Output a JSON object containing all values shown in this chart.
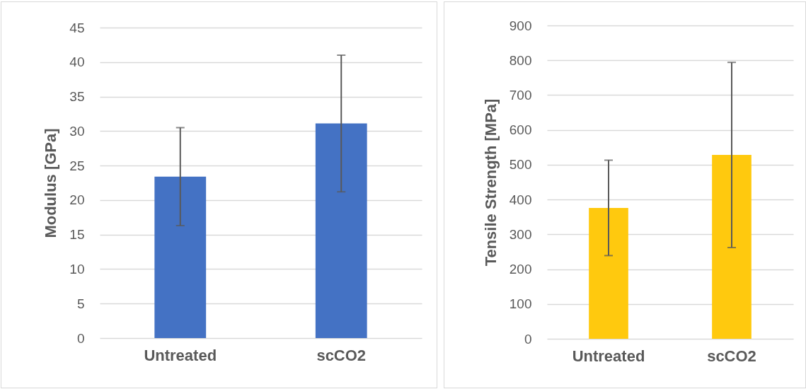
{
  "chart_data": [
    {
      "type": "bar",
      "ylabel": "Modulus [GPa]",
      "categories": [
        "Untreated",
        "scCO2"
      ],
      "values": [
        23.4,
        31.1
      ],
      "color": "#4472c4",
      "errors": [
        [
          16.3,
          30.5
        ],
        [
          21.2,
          41.0
        ]
      ],
      "ylim": [
        0,
        45
      ],
      "yticks": [
        0,
        5,
        10,
        15,
        20,
        25,
        30,
        35,
        40,
        45
      ],
      "grid": "y"
    },
    {
      "type": "bar",
      "ylabel": "Tensile Strength [MPa]",
      "categories": [
        "Untreated",
        "scCO2"
      ],
      "values": [
        376,
        528
      ],
      "color": "#ffc90e",
      "errors": [
        [
          239,
          513
        ],
        [
          262,
          794
        ]
      ],
      "ylim": [
        0,
        900
      ],
      "yticks": [
        0,
        100,
        200,
        300,
        400,
        500,
        600,
        700,
        800,
        900
      ],
      "grid": "y"
    }
  ]
}
